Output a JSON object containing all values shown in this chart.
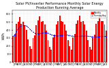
{
  "title": "Solar PV/Inverter Performance Monthly Solar Energy Production Running Average",
  "title_fontsize": 3.5,
  "bar_color": "#ff0000",
  "avg_color": "#0000ff",
  "background_color": "#ffffff",
  "grid_color": "#cccccc",
  "months": [
    "J",
    "F",
    "M",
    "A",
    "M",
    "J",
    "J",
    "A",
    "S",
    "O",
    "N",
    "D",
    "J",
    "F",
    "M",
    "A",
    "M",
    "J",
    "J",
    "A",
    "S",
    "O",
    "N",
    "D",
    "J",
    "F",
    "M",
    "A",
    "M",
    "J",
    "J",
    "A",
    "S",
    "O",
    "N",
    "D",
    "J",
    "F",
    "M",
    "A",
    "M",
    "J",
    "J",
    "A",
    "S",
    "O",
    "N",
    "D",
    "J",
    "F",
    "M",
    "A",
    "M",
    "J",
    "J",
    "A",
    "S",
    "O",
    "N",
    "D"
  ],
  "values": [
    320,
    350,
    480,
    500,
    560,
    480,
    500,
    460,
    400,
    280,
    200,
    160,
    300,
    330,
    460,
    520,
    570,
    500,
    510,
    470,
    390,
    270,
    190,
    150,
    310,
    340,
    470,
    510,
    580,
    510,
    505,
    465,
    395,
    275,
    195,
    155,
    305,
    345,
    475,
    515,
    575,
    505,
    508,
    468,
    393,
    272,
    192,
    152,
    308,
    342,
    478,
    512,
    580,
    510,
    508,
    465,
    390
  ],
  "running_avg": [
    320,
    335,
    383,
    413,
    442,
    448,
    456,
    456,
    449,
    433,
    412,
    390,
    374,
    361,
    353,
    352,
    354,
    358,
    363,
    366,
    366,
    360,
    351,
    340,
    333,
    328,
    326,
    326,
    329,
    333,
    336,
    338,
    338,
    336,
    332,
    327,
    323,
    321,
    320,
    321,
    322,
    323,
    324,
    325,
    324,
    323,
    320,
    318,
    316,
    314,
    313,
    313,
    315,
    318,
    320,
    320,
    318
  ],
  "ylim": [
    0,
    650
  ],
  "ylabel": "kWh",
  "ylabel_fontsize": 3.5,
  "tick_fontsize": 2.5
}
